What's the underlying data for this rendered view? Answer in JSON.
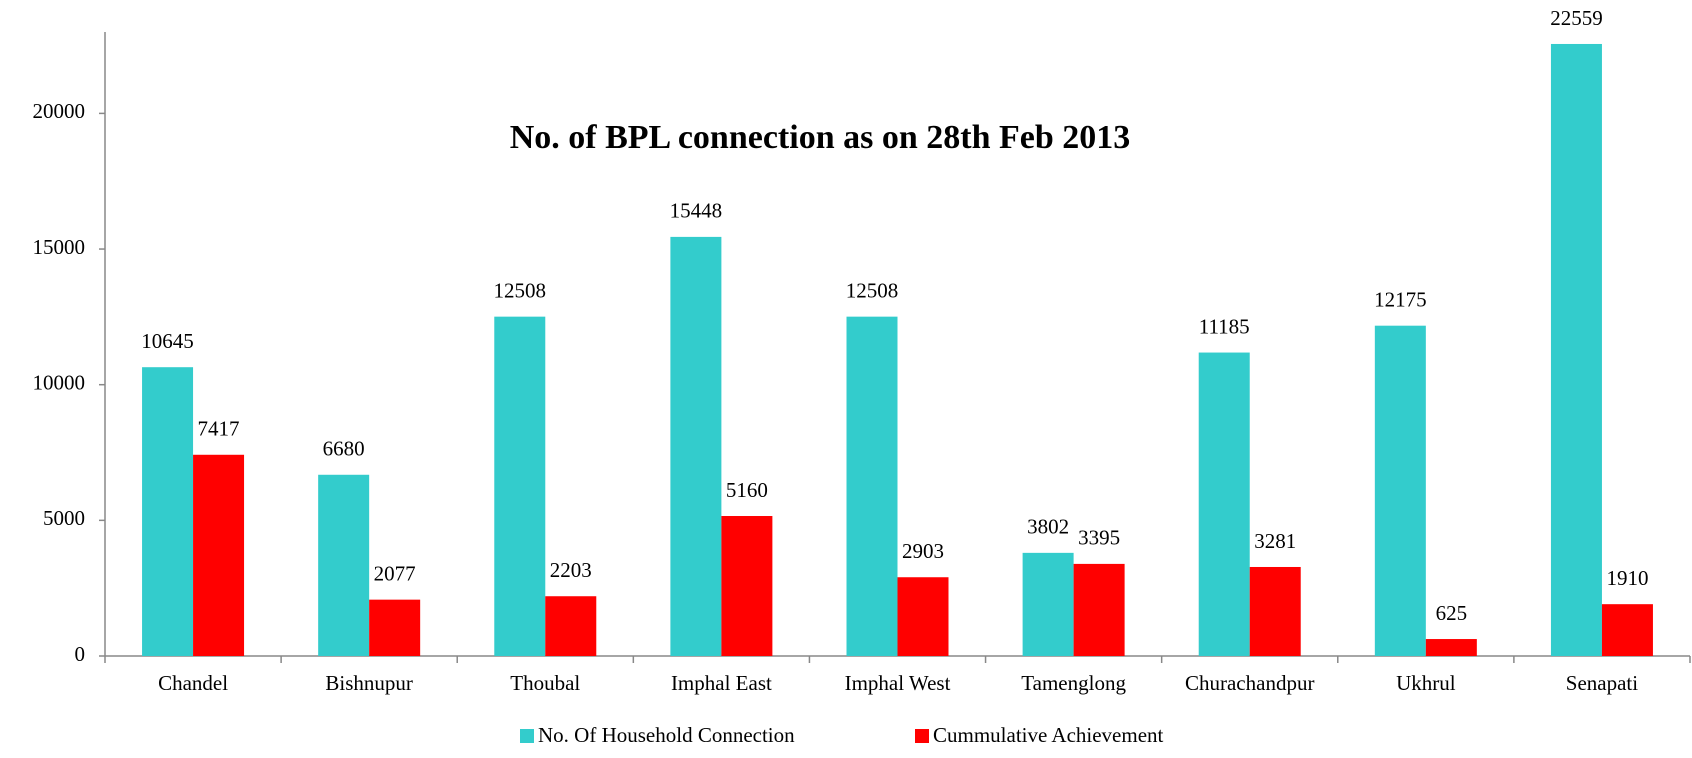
{
  "chart_data": {
    "type": "bar",
    "title": "No. of BPL connection as on 28th Feb 2013",
    "categories": [
      "Chandel",
      "Bishnupur",
      "Thoubal",
      "Imphal East",
      "Imphal West",
      "Tamenglong",
      "Churachandpur",
      "Ukhrul",
      "Senapati"
    ],
    "series": [
      {
        "name": "No. Of Household Connection",
        "color": "#33CCCC",
        "values": [
          10645,
          6680,
          12508,
          15448,
          12508,
          3802,
          11185,
          12175,
          22559
        ]
      },
      {
        "name": "Cummulative Achievement",
        "color": "#FF0000",
        "values": [
          7417,
          2077,
          2203,
          5160,
          2903,
          3395,
          3281,
          625,
          1910
        ]
      }
    ],
    "ylim": [
      0,
      23000
    ],
    "yticks": [
      0,
      5000,
      10000,
      15000,
      20000
    ],
    "grid": false,
    "legend": "bottom"
  }
}
